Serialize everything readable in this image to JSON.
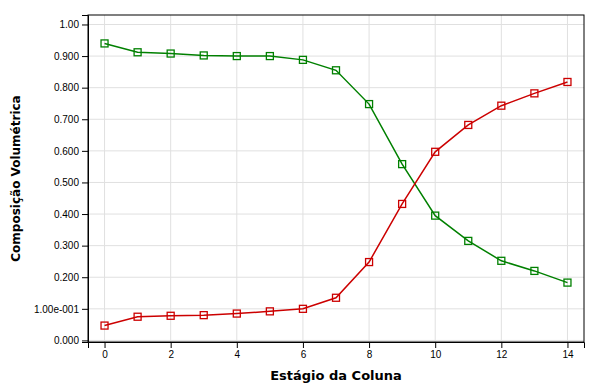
{
  "chart_data": {
    "type": "line",
    "x": [
      0,
      1,
      2,
      3,
      4,
      5,
      6,
      7,
      8,
      9,
      10,
      11,
      12,
      13,
      14
    ],
    "series": [
      {
        "color": "#008000",
        "marker": "square",
        "values": [
          0.94,
          0.912,
          0.908,
          0.902,
          0.9,
          0.9,
          0.888,
          0.855,
          0.748,
          0.558,
          0.395,
          0.315,
          0.252,
          0.22,
          0.183
        ]
      },
      {
        "color": "#cc0000",
        "marker": "square",
        "values": [
          0.047,
          0.075,
          0.078,
          0.08,
          0.085,
          0.092,
          0.1,
          0.135,
          0.248,
          0.432,
          0.597,
          0.682,
          0.743,
          0.782,
          0.818
        ]
      }
    ],
    "xlabel": "Estágio da Coluna",
    "ylabel": "Composição Volumétrica",
    "xlim": [
      -0.5,
      14.5
    ],
    "xticks": [
      0,
      2,
      4,
      6,
      8,
      10,
      12,
      14
    ],
    "ylim": [
      -0.005,
      1.03
    ],
    "yticks": [
      {
        "value": 0.0,
        "label": "0.000"
      },
      {
        "value": 0.1,
        "label": "1.00e-001"
      },
      {
        "value": 0.2,
        "label": "0.200"
      },
      {
        "value": 0.3,
        "label": "0.300"
      },
      {
        "value": 0.4,
        "label": "0.400"
      },
      {
        "value": 0.5,
        "label": "0.500"
      },
      {
        "value": 0.6,
        "label": "0.600"
      },
      {
        "value": 0.7,
        "label": "0.700"
      },
      {
        "value": 0.8,
        "label": "0.800"
      },
      {
        "value": 0.9,
        "label": "0.900"
      },
      {
        "value": 1.0,
        "label": "1.00"
      }
    ],
    "grid": true
  }
}
